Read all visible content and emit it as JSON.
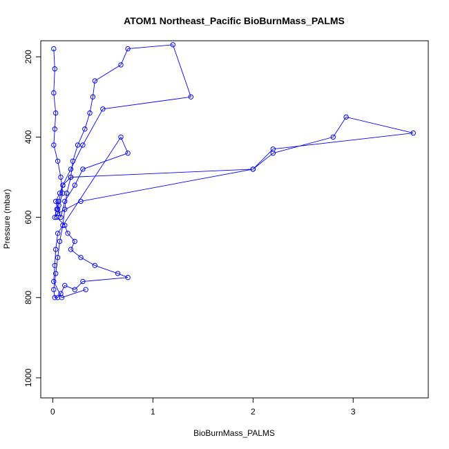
{
  "chart_data": {
    "type": "scatter",
    "title": "ATOM1 Northeast_Pacific BioBurnMass_PALMS",
    "xlabel": "BioBurnMass_PALMS",
    "ylabel": "Pressure (mbar)",
    "xlim": [
      -0.12,
      3.75
    ],
    "ylim": [
      1050,
      160
    ],
    "x_ticks": [
      "0",
      "1",
      "2",
      "3"
    ],
    "y_ticks": [
      "200",
      "400",
      "600",
      "800",
      "1000"
    ],
    "y_inverted": true,
    "grid": false,
    "legend": "none",
    "series": [
      {
        "marker": "open-circle",
        "line": true,
        "color": "#0000FF",
        "x": [
          0.01,
          0.02,
          0.01,
          0.03,
          0.02,
          0.01,
          0.05,
          0.08,
          0.1,
          0.06,
          0.04,
          0.12,
          0.15,
          0.22,
          0.18,
          0.28,
          0.42,
          0.65,
          0.75,
          0.3,
          0.22,
          0.12,
          0.08,
          0.05,
          0.02,
          0.01,
          0.03,
          0.05,
          0.07,
          0.1,
          0.12,
          0.14,
          0.18,
          0.2,
          0.25,
          0.32,
          0.37,
          0.4,
          0.42,
          0.68,
          0.75,
          1.2,
          1.38,
          0.5,
          0.3,
          0.18,
          0.1,
          0.06,
          0.04,
          0.02,
          0.05,
          0.28,
          2.0,
          2.2,
          2.8,
          2.93,
          3.6,
          2.2,
          2.0,
          0.18,
          0.1,
          0.07,
          0.03,
          0.05,
          0.08,
          0.12,
          0.22,
          0.3,
          0.75,
          0.68,
          0.05,
          0.03,
          0.02,
          0.01,
          0.09,
          0.33
        ],
        "y": [
          180,
          230,
          290,
          340,
          380,
          420,
          460,
          500,
          540,
          570,
          600,
          620,
          640,
          660,
          680,
          700,
          720,
          740,
          750,
          760,
          780,
          770,
          790,
          800,
          800,
          780,
          740,
          700,
          660,
          620,
          580,
          540,
          500,
          460,
          420,
          380,
          340,
          300,
          260,
          220,
          180,
          170,
          300,
          330,
          420,
          480,
          520,
          560,
          580,
          600,
          590,
          560,
          480,
          440,
          400,
          350,
          390,
          430,
          480,
          500,
          520,
          540,
          560,
          580,
          600,
          560,
          520,
          480,
          440,
          400,
          640,
          680,
          720,
          760,
          800,
          780
        ]
      }
    ]
  }
}
